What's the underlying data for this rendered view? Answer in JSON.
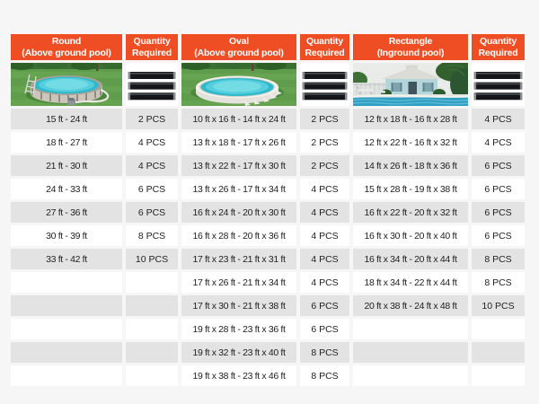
{
  "page": {
    "background": "#f6f6f7"
  },
  "colors": {
    "header_bg": "#ef4e25",
    "header_text": "#ffffff",
    "row_stripe": "#e3e3e3",
    "cell_text": "#1f1f1f"
  },
  "columns": [
    {
      "title": "Round",
      "subtitle": "(Above ground pool)",
      "image": "round-above-ground-pool-photo"
    },
    {
      "title": "Quantity",
      "subtitle": "Required",
      "image": "cover-wall-bars-image"
    },
    {
      "title": "Oval",
      "subtitle": "(Above ground pool)",
      "image": "oval-above-ground-pool-photo"
    },
    {
      "title": "Quantity",
      "subtitle": "Required",
      "image": "cover-wall-bars-image"
    },
    {
      "title": "Rectangle",
      "subtitle": "(Inground pool)",
      "image": "rectangle-inground-pool-photo"
    },
    {
      "title": "Quantity",
      "subtitle": "Required",
      "image": "cover-wall-bars-image"
    }
  ],
  "rows": [
    {
      "cells": [
        "15 ft - 24 ft",
        "2 PCS",
        "10 ft x 16 ft - 14 ft x 24 ft",
        "2 PCS",
        "12 ft x 18 ft - 16 ft x 28 ft",
        "4 PCS"
      ]
    },
    {
      "cells": [
        "18 ft - 27 ft",
        "4 PCS",
        "13 ft x 18 ft - 17 ft x 26 ft",
        "2 PCS",
        "12 ft x 22 ft - 16 ft x 32 ft",
        "4 PCS"
      ]
    },
    {
      "cells": [
        "21 ft - 30 ft",
        "4 PCS",
        "13 ft x 22 ft - 17 ft x 30 ft",
        "2 PCS",
        "14 ft x 26 ft - 18 ft x 36 ft",
        "6 PCS"
      ]
    },
    {
      "cells": [
        "24 ft - 33 ft",
        "6 PCS",
        "13 ft x 26 ft - 17 ft x 34 ft",
        "4 PCS",
        "15 ft x 28 ft - 19 ft x 38 ft",
        "6 PCS"
      ]
    },
    {
      "cells": [
        "27 ft - 36 ft",
        "6 PCS",
        "16 ft x 24 ft - 20 ft x 30 ft",
        "4 PCS",
        "16 ft x 22 ft - 20 ft x 32 ft",
        "6 PCS"
      ]
    },
    {
      "cells": [
        "30 ft - 39 ft",
        "8 PCS",
        "16 ft x 28 ft - 20 ft x 36 ft",
        "4 PCS",
        "16 ft x 30 ft - 20 ft x 40 ft",
        "6 PCS"
      ]
    },
    {
      "cells": [
        "33 ft - 42 ft",
        "10 PCS",
        "17 ft x 23 ft - 21 ft x 31 ft",
        "4 PCS",
        "16 ft x 34 ft - 20 ft x 44 ft",
        "8 PCS"
      ]
    },
    {
      "cells": [
        "",
        "",
        "17 ft x 26 ft - 21 ft x 34 ft",
        "4 PCS",
        "18 ft x 34 ft - 22 ft x 44 ft",
        "8 PCS"
      ]
    },
    {
      "cells": [
        "",
        "",
        "17 ft x 30 ft - 21 ft x 38 ft",
        "6 PCS",
        "20 ft x 38 ft - 24 ft x 48 ft",
        "10 PCS"
      ]
    },
    {
      "cells": [
        "",
        "",
        "19 ft x 28 ft - 23 ft x 36 ft",
        "6 PCS",
        "",
        ""
      ]
    },
    {
      "cells": [
        "",
        "",
        "19 ft x 32 ft - 23 ft x 40 ft",
        "8 PCS",
        "",
        ""
      ]
    },
    {
      "cells": [
        "",
        "",
        "19 ft x 38 ft - 23 ft x 46 ft",
        "8 PCS",
        "",
        ""
      ]
    }
  ]
}
